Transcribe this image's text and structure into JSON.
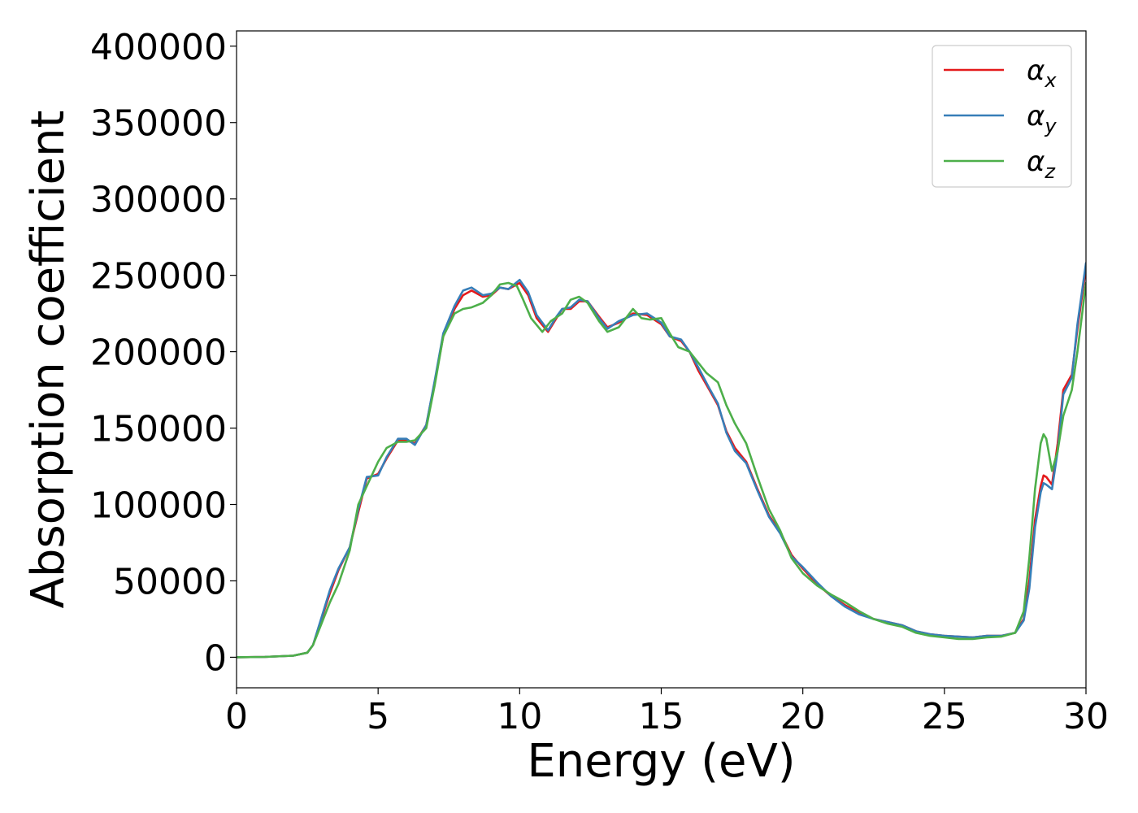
{
  "chart_data": {
    "type": "line",
    "title": "",
    "xlabel": "Energy (eV)",
    "ylabel": "Absorption coefficient",
    "xlim": [
      0,
      30
    ],
    "ylim": [
      -20000,
      410000
    ],
    "xticks": [
      0,
      5,
      10,
      15,
      20,
      25,
      30
    ],
    "yticks": [
      0,
      50000,
      100000,
      150000,
      200000,
      250000,
      300000,
      350000,
      400000
    ],
    "xtick_labels": [
      "0",
      "5",
      "10",
      "15",
      "20",
      "25",
      "30"
    ],
    "ytick_labels": [
      "0",
      "50000",
      "100000",
      "150000",
      "200000",
      "250000",
      "300000",
      "350000",
      "400000"
    ],
    "grid": false,
    "legend_position": "top-right",
    "series": [
      {
        "name": "αx",
        "symbol": "α",
        "subscript": "x",
        "color": "#e41a1c",
        "points": [
          [
            0,
            0
          ],
          [
            1,
            200
          ],
          [
            2,
            1000
          ],
          [
            2.5,
            3000
          ],
          [
            2.7,
            8000
          ],
          [
            3,
            25000
          ],
          [
            3.3,
            42000
          ],
          [
            3.6,
            57000
          ],
          [
            4,
            72000
          ],
          [
            4.3,
            95000
          ],
          [
            4.6,
            117000
          ],
          [
            5,
            120000
          ],
          [
            5.3,
            130000
          ],
          [
            5.7,
            142000
          ],
          [
            6,
            142000
          ],
          [
            6.3,
            140000
          ],
          [
            6.7,
            152000
          ],
          [
            7,
            180000
          ],
          [
            7.3,
            210000
          ],
          [
            7.7,
            228000
          ],
          [
            8,
            237000
          ],
          [
            8.3,
            240000
          ],
          [
            8.7,
            236000
          ],
          [
            9,
            237000
          ],
          [
            9.3,
            242000
          ],
          [
            9.6,
            241000
          ],
          [
            10,
            245000
          ],
          [
            10.3,
            237000
          ],
          [
            10.6,
            222000
          ],
          [
            11,
            213000
          ],
          [
            11.3,
            222000
          ],
          [
            11.5,
            228000
          ],
          [
            11.8,
            228000
          ],
          [
            12.1,
            233000
          ],
          [
            12.4,
            233000
          ],
          [
            12.8,
            223000
          ],
          [
            13.1,
            216000
          ],
          [
            13.5,
            219000
          ],
          [
            14,
            225000
          ],
          [
            14.5,
            224000
          ],
          [
            15,
            218000
          ],
          [
            15.3,
            210000
          ],
          [
            15.7,
            207000
          ],
          [
            16,
            200000
          ],
          [
            16.3,
            188000
          ],
          [
            16.7,
            175000
          ],
          [
            17,
            165000
          ],
          [
            17.3,
            148000
          ],
          [
            17.6,
            137000
          ],
          [
            18,
            128000
          ],
          [
            18.4,
            110000
          ],
          [
            18.8,
            93000
          ],
          [
            19.2,
            82000
          ],
          [
            19.6,
            67000
          ],
          [
            20,
            58000
          ],
          [
            20.5,
            48000
          ],
          [
            21,
            40000
          ],
          [
            21.5,
            34000
          ],
          [
            22,
            29000
          ],
          [
            22.5,
            25000
          ],
          [
            23,
            23000
          ],
          [
            23.5,
            21000
          ],
          [
            24,
            17000
          ],
          [
            24.5,
            15000
          ],
          [
            25,
            14000
          ],
          [
            25.5,
            13500
          ],
          [
            26,
            13000
          ],
          [
            26.5,
            14000
          ],
          [
            27,
            14000
          ],
          [
            27.5,
            16000
          ],
          [
            27.8,
            25000
          ],
          [
            28,
            50000
          ],
          [
            28.2,
            90000
          ],
          [
            28.4,
            112000
          ],
          [
            28.5,
            119000
          ],
          [
            28.6,
            118000
          ],
          [
            28.8,
            113000
          ],
          [
            29,
            140000
          ],
          [
            29.2,
            175000
          ],
          [
            29.5,
            185000
          ],
          [
            29.7,
            215000
          ],
          [
            30,
            255000
          ]
        ]
      },
      {
        "name": "αy",
        "symbol": "α",
        "subscript": "y",
        "color": "#377eb8",
        "points": [
          [
            0,
            0
          ],
          [
            1,
            200
          ],
          [
            2,
            1000
          ],
          [
            2.5,
            3000
          ],
          [
            2.7,
            8000
          ],
          [
            3,
            26000
          ],
          [
            3.3,
            44000
          ],
          [
            3.6,
            58000
          ],
          [
            4,
            72000
          ],
          [
            4.3,
            97000
          ],
          [
            4.6,
            118000
          ],
          [
            5,
            119000
          ],
          [
            5.3,
            131000
          ],
          [
            5.7,
            143000
          ],
          [
            6,
            143000
          ],
          [
            6.3,
            139000
          ],
          [
            6.7,
            152000
          ],
          [
            7,
            181000
          ],
          [
            7.3,
            212000
          ],
          [
            7.7,
            230000
          ],
          [
            8,
            240000
          ],
          [
            8.3,
            242000
          ],
          [
            8.7,
            237000
          ],
          [
            9,
            238000
          ],
          [
            9.3,
            242000
          ],
          [
            9.6,
            241000
          ],
          [
            10,
            247000
          ],
          [
            10.3,
            239000
          ],
          [
            10.6,
            224000
          ],
          [
            11,
            214000
          ],
          [
            11.3,
            223000
          ],
          [
            11.5,
            228000
          ],
          [
            11.8,
            229000
          ],
          [
            12.1,
            234000
          ],
          [
            12.4,
            233000
          ],
          [
            12.8,
            222000
          ],
          [
            13.1,
            215000
          ],
          [
            13.5,
            220000
          ],
          [
            14,
            224000
          ],
          [
            14.5,
            225000
          ],
          [
            15,
            219000
          ],
          [
            15.3,
            210000
          ],
          [
            15.7,
            208000
          ],
          [
            16,
            200000
          ],
          [
            16.3,
            190000
          ],
          [
            16.7,
            176000
          ],
          [
            17,
            166000
          ],
          [
            17.3,
            147000
          ],
          [
            17.6,
            135000
          ],
          [
            18,
            127000
          ],
          [
            18.4,
            109000
          ],
          [
            18.8,
            92000
          ],
          [
            19.2,
            81000
          ],
          [
            19.6,
            66000
          ],
          [
            20,
            59000
          ],
          [
            20.5,
            49000
          ],
          [
            21,
            40000
          ],
          [
            21.5,
            33000
          ],
          [
            22,
            28000
          ],
          [
            22.5,
            25000
          ],
          [
            23,
            23000
          ],
          [
            23.5,
            21000
          ],
          [
            24,
            17000
          ],
          [
            24.5,
            15000
          ],
          [
            25,
            14000
          ],
          [
            25.5,
            13500
          ],
          [
            26,
            13000
          ],
          [
            26.5,
            14000
          ],
          [
            27,
            14000
          ],
          [
            27.5,
            16000
          ],
          [
            27.8,
            24000
          ],
          [
            28,
            45000
          ],
          [
            28.2,
            85000
          ],
          [
            28.4,
            108000
          ],
          [
            28.5,
            114000
          ],
          [
            28.6,
            113000
          ],
          [
            28.8,
            110000
          ],
          [
            29,
            135000
          ],
          [
            29.2,
            172000
          ],
          [
            29.5,
            183000
          ],
          [
            29.7,
            218000
          ],
          [
            30,
            258000
          ]
        ]
      },
      {
        "name": "αz",
        "symbol": "α",
        "subscript": "z",
        "color": "#4daf4a",
        "points": [
          [
            0,
            0
          ],
          [
            1,
            200
          ],
          [
            2,
            1000
          ],
          [
            2.5,
            3000
          ],
          [
            2.7,
            8000
          ],
          [
            3,
            22000
          ],
          [
            3.3,
            36000
          ],
          [
            3.6,
            48000
          ],
          [
            4,
            70000
          ],
          [
            4.3,
            100000
          ],
          [
            4.6,
            112000
          ],
          [
            5,
            128000
          ],
          [
            5.3,
            137000
          ],
          [
            5.7,
            141000
          ],
          [
            6,
            141000
          ],
          [
            6.3,
            142000
          ],
          [
            6.7,
            150000
          ],
          [
            7,
            178000
          ],
          [
            7.3,
            210000
          ],
          [
            7.7,
            225000
          ],
          [
            8,
            228000
          ],
          [
            8.3,
            229000
          ],
          [
            8.7,
            232000
          ],
          [
            9,
            237000
          ],
          [
            9.3,
            244000
          ],
          [
            9.6,
            245000
          ],
          [
            9.9,
            243000
          ],
          [
            10.1,
            235000
          ],
          [
            10.4,
            222000
          ],
          [
            10.8,
            213000
          ],
          [
            11.1,
            220000
          ],
          [
            11.5,
            225000
          ],
          [
            11.8,
            234000
          ],
          [
            12.1,
            236000
          ],
          [
            12.4,
            232000
          ],
          [
            12.8,
            220000
          ],
          [
            13.1,
            213000
          ],
          [
            13.5,
            216000
          ],
          [
            14,
            228000
          ],
          [
            14.3,
            222000
          ],
          [
            14.6,
            221000
          ],
          [
            15,
            222000
          ],
          [
            15.3,
            212000
          ],
          [
            15.6,
            203000
          ],
          [
            16,
            200000
          ],
          [
            16.3,
            193000
          ],
          [
            16.6,
            186000
          ],
          [
            17,
            180000
          ],
          [
            17.3,
            165000
          ],
          [
            17.6,
            153000
          ],
          [
            18,
            140000
          ],
          [
            18.4,
            118000
          ],
          [
            18.8,
            97000
          ],
          [
            19.2,
            83000
          ],
          [
            19.6,
            65000
          ],
          [
            20,
            55000
          ],
          [
            20.5,
            47000
          ],
          [
            21,
            41000
          ],
          [
            21.5,
            36000
          ],
          [
            22,
            30000
          ],
          [
            22.5,
            25000
          ],
          [
            23,
            22000
          ],
          [
            23.5,
            20000
          ],
          [
            24,
            16000
          ],
          [
            24.5,
            14000
          ],
          [
            25,
            13000
          ],
          [
            25.5,
            12000
          ],
          [
            26,
            12000
          ],
          [
            26.5,
            13000
          ],
          [
            27,
            13500
          ],
          [
            27.5,
            16000
          ],
          [
            27.8,
            30000
          ],
          [
            28,
            65000
          ],
          [
            28.2,
            110000
          ],
          [
            28.4,
            140000
          ],
          [
            28.5,
            146000
          ],
          [
            28.6,
            143000
          ],
          [
            28.8,
            122000
          ],
          [
            29,
            135000
          ],
          [
            29.2,
            158000
          ],
          [
            29.5,
            175000
          ],
          [
            29.7,
            200000
          ],
          [
            30,
            245000
          ]
        ]
      }
    ]
  }
}
